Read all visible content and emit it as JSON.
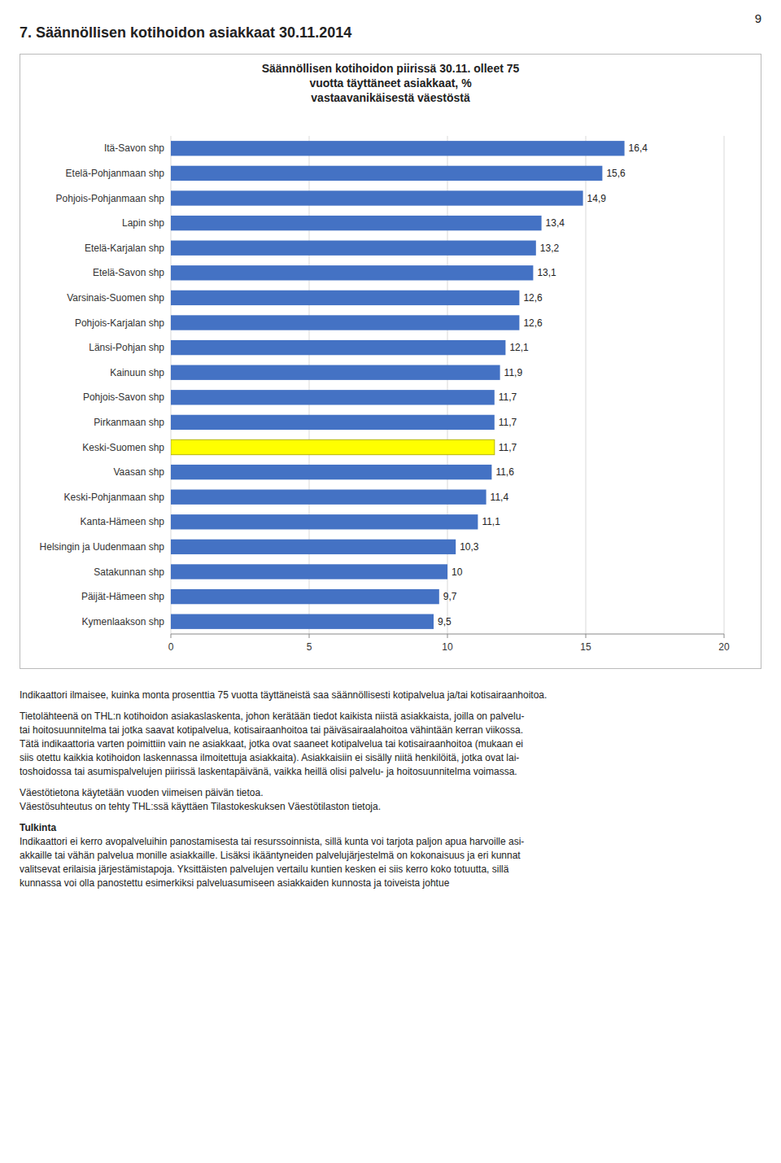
{
  "page_number": "9",
  "title": "7. Säännöllisen kotihoidon asiakkaat 30.11.2014",
  "chart_data": {
    "type": "bar",
    "orientation": "horizontal",
    "title": "Säännöllisen kotihoidon piirissä 30.11. olleet 75\nvuotta täyttäneet asiakkaat, %\nvastaavanikäisestä väestöstä",
    "categories": [
      "Itä-Savon shp",
      "Etelä-Pohjanmaan shp",
      "Pohjois-Pohjanmaan shp",
      "Lapin shp",
      "Etelä-Karjalan shp",
      "Etelä-Savon shp",
      "Varsinais-Suomen shp",
      "Pohjois-Karjalan shp",
      "Länsi-Pohjan shp",
      "Kainuun shp",
      "Pohjois-Savon shp",
      "Pirkanmaan shp",
      "Keski-Suomen shp",
      "Vaasan shp",
      "Keski-Pohjanmaan shp",
      "Kanta-Hämeen shp",
      "Helsingin ja Uudenmaan shp",
      "Satakunnan shp",
      "Päijät-Hämeen shp",
      "Kymenlaakson shp"
    ],
    "values": [
      16.4,
      15.6,
      14.9,
      13.4,
      13.2,
      13.1,
      12.6,
      12.6,
      12.1,
      11.9,
      11.7,
      11.7,
      11.7,
      11.6,
      11.4,
      11.1,
      10.3,
      10,
      9.7,
      9.5
    ],
    "value_labels": [
      "16,4",
      "15,6",
      "14,9",
      "13,4",
      "13,2",
      "13,1",
      "12,6",
      "12,6",
      "12,1",
      "11,9",
      "11,7",
      "11,7",
      "11,7",
      "11,6",
      "11,4",
      "11,1",
      "10,3",
      "10",
      "9,7",
      "9,5"
    ],
    "data_labels": true,
    "colors": [
      "#4472c4",
      "#4472c4",
      "#4472c4",
      "#4472c4",
      "#4472c4",
      "#4472c4",
      "#4472c4",
      "#4472c4",
      "#4472c4",
      "#4472c4",
      "#4472c4",
      "#4472c4",
      "#ffff00",
      "#4472c4",
      "#4472c4",
      "#4472c4",
      "#4472c4",
      "#4472c4",
      "#4472c4",
      "#4472c4"
    ],
    "xlim": [
      0,
      20
    ],
    "xticks": [
      0,
      5,
      10,
      15,
      20
    ],
    "grid": true
  },
  "text_sections": [
    {
      "lines": [
        "Indikaattori ilmaisee, kuinka monta prosenttia 75 vuotta täyttäneistä saa säännöllisesti kotipalvelua ja/tai kotisairaanhoitoa."
      ]
    },
    {
      "lines": [
        "Tietolähteenä on THL:n kotihoidon asiakaslaskenta, johon kerätään tiedot kaikista niistä asiakkaista, joilla on palvelu-",
        "tai hoitosuunnitelma tai jotka saavat kotipalvelua, kotisairaanhoitoa tai päiväsairaalahoitoa vähintään kerran viikossa.",
        "Tätä indikaattoria varten poimittiin vain ne asiakkaat, jotka ovat saaneet kotipalvelua tai kotisairaanhoitoa (mukaan ei",
        "siis otettu kaikkia kotihoidon laskennassa ilmoitettuja asiakkaita). Asiakkaisiin ei sisälly niitä henkilöitä, jotka ovat lai-",
        "toshoidossa tai asumispalvelujen piirissä laskentapäivänä, vaikka heillä olisi palvelu- ja hoitosuunnitelma voimassa."
      ]
    },
    {
      "lines": [
        "Väestötietona käytetään vuoden viimeisen päivän tietoa.",
        "Väestösuhteutus on tehty THL:ssä käyttäen Tilastokeskuksen Väestötilaston tietoja."
      ]
    },
    {
      "heading": "Tulkinta",
      "lines": [
        "Indikaattori ei kerro avopalveluihin panostamisesta tai resurssoinnista, sillä kunta voi tarjota paljon apua harvoille asi-",
        "akkaille tai vähän palvelua monille asiakkaille. Lisäksi ikääntyneiden palvelujärjestelmä on kokonaisuus ja eri kunnat",
        "valitsevat erilaisia järjestämistapoja. Yksittäisten palvelujen vertailu kuntien kesken ei siis kerro koko totuutta, sillä",
        "kunnassa voi olla panostettu esimerkiksi palveluasumiseen asiakkaiden kunnosta ja toiveista johtue"
      ]
    }
  ]
}
